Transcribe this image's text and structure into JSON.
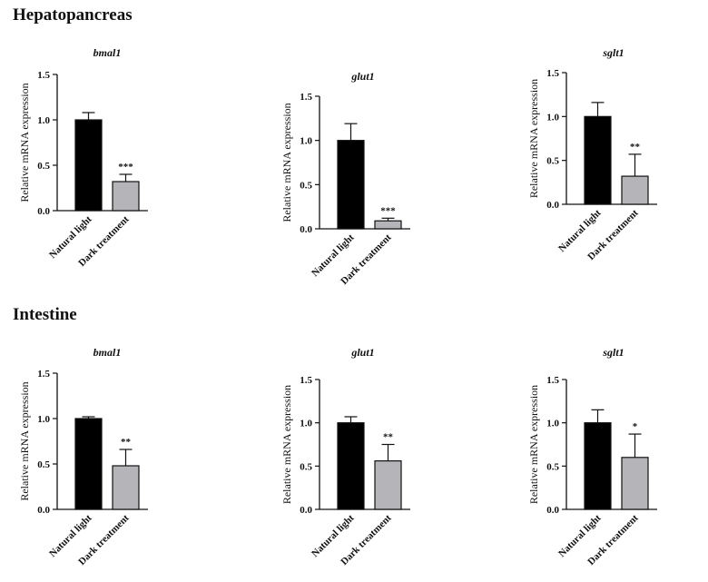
{
  "sections": [
    {
      "title": "Hepatopancreas"
    },
    {
      "title": "Intestine"
    }
  ],
  "chart_data": [
    {
      "type": "bar",
      "section": "Hepatopancreas",
      "title": "bmal1",
      "ylabel": "Relative mRNA expression",
      "ylim": [
        0,
        1.5
      ],
      "yticks": [
        "0.0",
        "0.5",
        "1.0",
        "1.5"
      ],
      "categories": [
        "Natural light",
        "Dark treatment"
      ],
      "values": [
        1.0,
        0.32
      ],
      "errors": [
        0.08,
        0.08
      ],
      "significance": "***",
      "colors": [
        "#000000",
        "#b4b4b9"
      ]
    },
    {
      "type": "bar",
      "section": "Hepatopancreas",
      "title": "glut1",
      "ylabel": "Relative mRNA expression",
      "ylim": [
        0,
        1.5
      ],
      "yticks": [
        "0.0",
        "0.5",
        "1.0",
        "1.5"
      ],
      "categories": [
        "Natural light",
        "Dark treatment"
      ],
      "values": [
        1.0,
        0.09
      ],
      "errors": [
        0.19,
        0.03
      ],
      "significance": "***",
      "colors": [
        "#000000",
        "#b4b4b9"
      ]
    },
    {
      "type": "bar",
      "section": "Hepatopancreas",
      "title": "sglt1",
      "ylabel": "Relative mRNA expression",
      "ylim": [
        0,
        1.5
      ],
      "yticks": [
        "0.0",
        "0.5",
        "1.0",
        "1.5"
      ],
      "categories": [
        "Natural light",
        "Dark treatment"
      ],
      "values": [
        1.0,
        0.32
      ],
      "errors": [
        0.16,
        0.25
      ],
      "significance": "**",
      "colors": [
        "#000000",
        "#b4b4b9"
      ]
    },
    {
      "type": "bar",
      "section": "Intestine",
      "title": "bmal1",
      "ylabel": "Relative mRNA expression",
      "ylim": [
        0,
        1.5
      ],
      "yticks": [
        "0.0",
        "0.5",
        "1.0",
        "1.5"
      ],
      "categories": [
        "Natural light",
        "Dark treatment"
      ],
      "values": [
        1.0,
        0.48
      ],
      "errors": [
        0.02,
        0.18
      ],
      "significance": "**",
      "colors": [
        "#000000",
        "#b4b4b9"
      ]
    },
    {
      "type": "bar",
      "section": "Intestine",
      "title": "glut1",
      "ylabel": "Relative mRNA expression",
      "ylim": [
        0,
        1.5
      ],
      "yticks": [
        "0.0",
        "0.5",
        "1.0",
        "1.5"
      ],
      "categories": [
        "Natural light",
        "Dark treatment"
      ],
      "values": [
        1.0,
        0.56
      ],
      "errors": [
        0.07,
        0.19
      ],
      "significance": "**",
      "colors": [
        "#000000",
        "#b4b4b9"
      ]
    },
    {
      "type": "bar",
      "section": "Intestine",
      "title": "sglt1",
      "ylabel": "Relative mRNA expression",
      "ylim": [
        0,
        1.5
      ],
      "yticks": [
        "0.0",
        "0.5",
        "1.0",
        "1.5"
      ],
      "categories": [
        "Natural light",
        "Dark treatment"
      ],
      "values": [
        1.0,
        0.6
      ],
      "errors": [
        0.15,
        0.27
      ],
      "significance": "*",
      "colors": [
        "#000000",
        "#b4b4b9"
      ]
    }
  ]
}
